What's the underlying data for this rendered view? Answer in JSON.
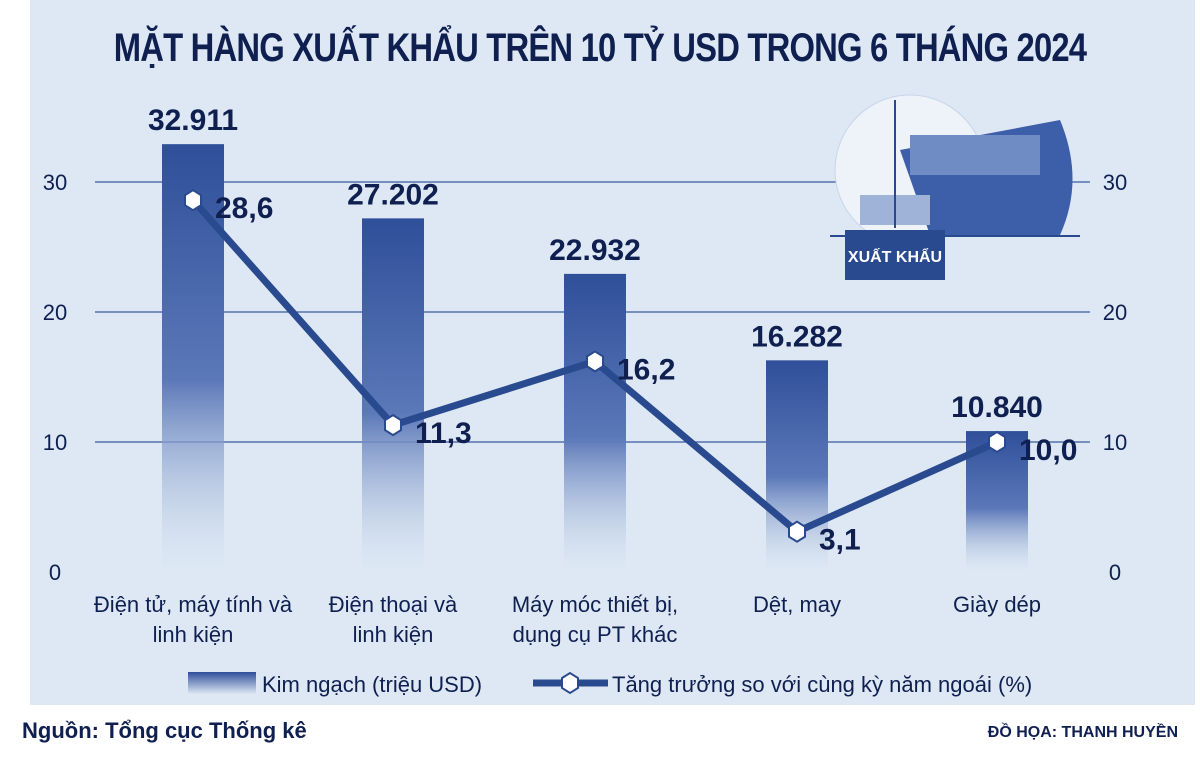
{
  "chart_data": {
    "type": "bar",
    "title": "MẶT HÀNG XUẤT KHẨU TRÊN 10 TỶ USD TRONG 6 THÁNG 2024",
    "categories": [
      [
        "Điện tử, máy tính và",
        "linh kiện"
      ],
      [
        "Điện thoại và",
        "linh kiện"
      ],
      [
        "Máy móc thiết bị,",
        "dụng cụ PT khác"
      ],
      [
        "Dệt, may"
      ],
      [
        "Giày dép"
      ]
    ],
    "series": [
      {
        "name": "Kim ngạch (triệu USD)",
        "type": "bar",
        "values": [
          32911,
          27202,
          22932,
          16282,
          10840
        ],
        "labels": [
          "32.911",
          "27.202",
          "22.932",
          "16.282",
          "10.840"
        ]
      },
      {
        "name": "Tăng trưởng so với cùng kỳ năm ngoái (%)",
        "type": "line",
        "values": [
          28.6,
          11.3,
          16.2,
          3.1,
          10.0
        ],
        "labels": [
          "28,6",
          "11,3",
          "16,2",
          "3,1",
          "10,0"
        ]
      }
    ],
    "yticks": [
      0,
      10,
      20,
      30
    ],
    "ylim": [
      0,
      35
    ],
    "grid": true,
    "legend": "bottom",
    "colors": {
      "bar": "#2f4f9a",
      "line": "#2a4a8f",
      "text": "#0f1f50"
    }
  },
  "illustration": {
    "label": "XUẤT KHẨU"
  },
  "source": "Nguồn: Tổng cục Thống kê",
  "credit": "ĐỒ HỌA: THANH HUYỀN"
}
